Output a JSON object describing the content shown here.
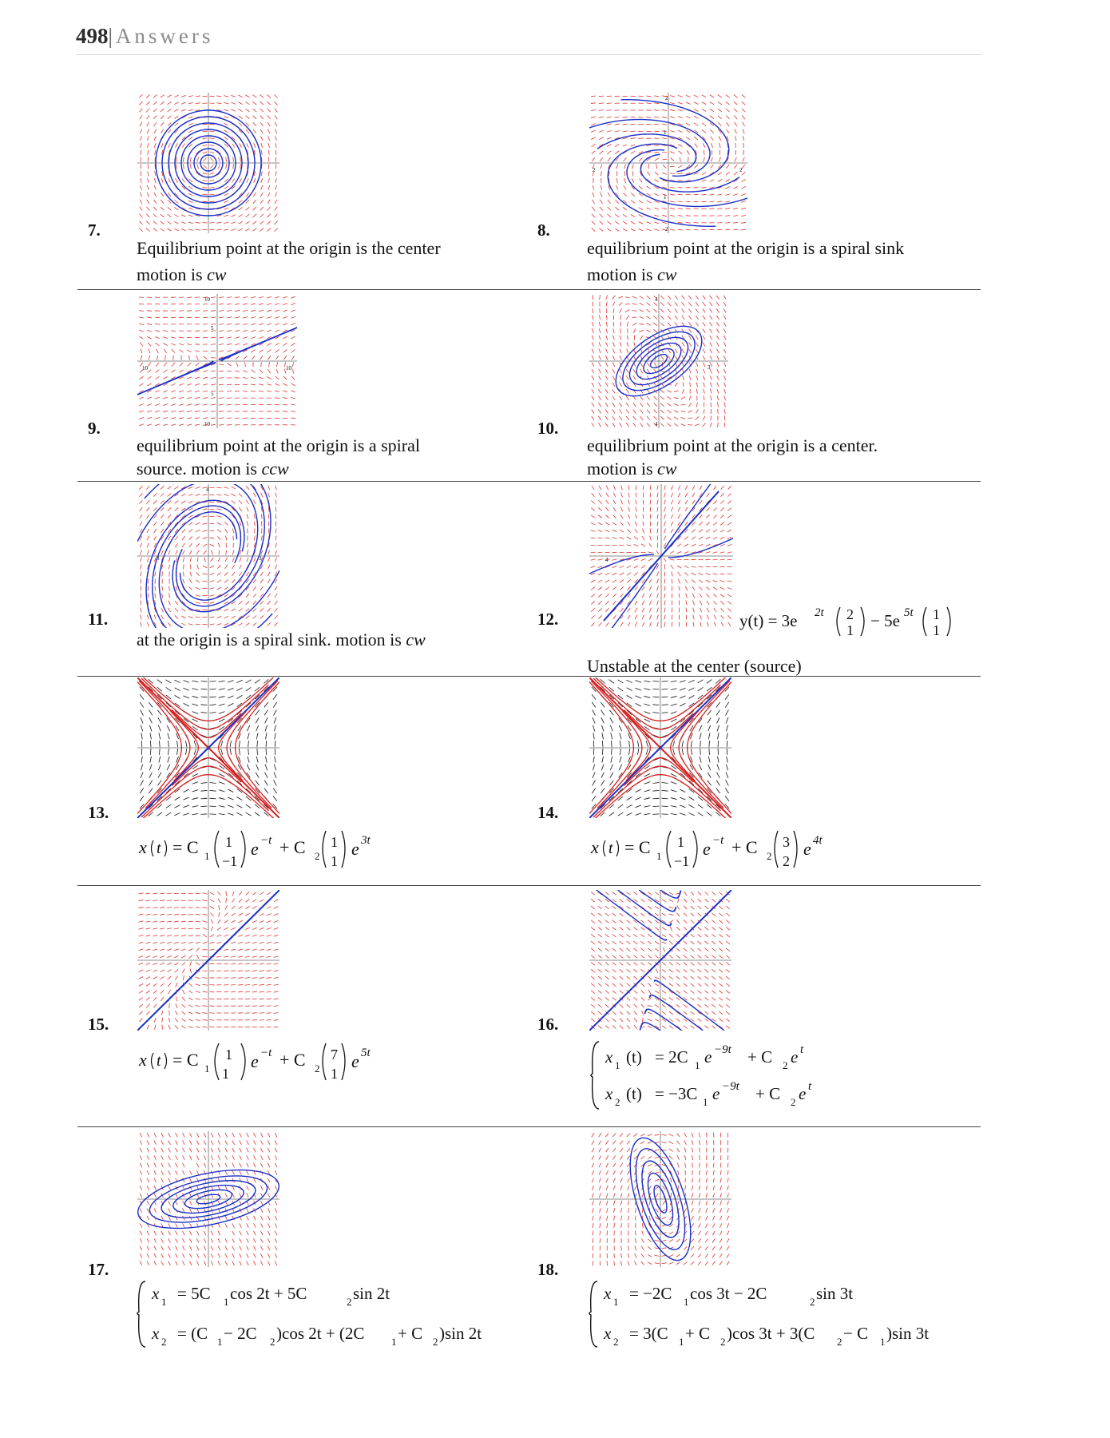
{
  "header": {
    "page_number": "498",
    "separator": "|",
    "title": "Answers"
  },
  "problems": [
    {
      "num": "7.",
      "caption": [
        "Equilibrium point at the origin is the center",
        "motion is"
      ],
      "direction": "cw"
    },
    {
      "num": "8.",
      "caption": [
        "equilibrium point at the origin is a spiral sink",
        "motion is"
      ],
      "direction": "cw"
    },
    {
      "num": "9.",
      "caption": [
        "equilibrium point at the origin is a spiral",
        "source. motion is"
      ],
      "direction": "ccw"
    },
    {
      "num": "10.",
      "caption": [
        "equilibrium point at the origin is a center.",
        "motion is"
      ],
      "direction": "cw"
    },
    {
      "num": "11.",
      "caption": [
        "at the origin is a spiral sink. motion is"
      ],
      "direction": "cw"
    },
    {
      "num": "12.",
      "caption": [
        "Unstable at the center (source)"
      ]
    },
    {
      "num": "13."
    },
    {
      "num": "14."
    },
    {
      "num": "15."
    },
    {
      "num": "16."
    },
    {
      "num": "17."
    },
    {
      "num": "18."
    }
  ],
  "ticks": {
    "p8": {
      "top": "2",
      "y1": "1",
      "left": "2",
      "right": "2",
      "y_1": "1",
      "bottom": "2"
    },
    "p9": {
      "top": "10",
      "y5": "5",
      "left": "10",
      "right": "10",
      "y_5": "5",
      "bottom": "10"
    },
    "p10": {
      "top": "4",
      "right": "3",
      "bottom": "4"
    },
    "p11": {
      "top": "4",
      "left": "3",
      "right": "3"
    },
    "p12": {
      "left": "4"
    }
  },
  "equations": {
    "e12": {
      "lhs": "y(t) = 3e",
      "exp1": "2t",
      "v1": [
        "2",
        "1"
      ],
      "mid": "− 5e",
      "exp2": "5t",
      "v2": [
        "1",
        "1"
      ]
    },
    "e13": {
      "lhs": "x",
      "t": "t",
      "eq": "= C",
      "s1": "1",
      "v1": [
        "1",
        "−1"
      ],
      "e1": "e",
      "exp1": "−t",
      "plus": "+ C",
      "s2": "2",
      "v2": [
        "1",
        "1"
      ],
      "e2": "e",
      "exp2": "3t"
    },
    "e14": {
      "lhs": "x",
      "t": "t",
      "eq": "= C",
      "s1": "1",
      "v1": [
        "1",
        "−1"
      ],
      "e1": "e",
      "exp1": "−t",
      "plus": "+ C",
      "s2": "2",
      "v2": [
        "3",
        "2"
      ],
      "e2": "e",
      "exp2": "4t"
    },
    "e15": {
      "lhs": "x",
      "t": "t",
      "eq": "= C",
      "s1": "1",
      "v1": [
        "1",
        "1"
      ],
      "e1": "e",
      "exp1": "−t",
      "plus": "+ C",
      "s2": "2",
      "v2": [
        "7",
        "1"
      ],
      "e2": "e",
      "exp2": "5t"
    },
    "e16": {
      "l1": {
        "x": "x",
        "sub": "1",
        "t": "(t)",
        "eq": "= 2C",
        "c1": "1",
        "e": "e",
        "exp": "−9t",
        "plus": "+ C",
        "c2": "2",
        "e2": "e",
        "exp2": "t"
      },
      "l2": {
        "x": "x",
        "sub": "2",
        "t": "(t)",
        "eq": "= −3C",
        "c1": "1",
        "e": "e",
        "exp": "−9t",
        "plus": "+ C",
        "c2": "2",
        "e2": "e",
        "exp2": "t"
      }
    },
    "e17": {
      "l1": {
        "x": "x",
        "sub": "1",
        "rest1": "= 5C",
        "c1": "1",
        "rest2": " cos 2t + 5C",
        "c2": "2",
        "rest3": " sin 2t"
      },
      "l2": {
        "x": "x",
        "sub": "2",
        "a": "= (C",
        "a1": "1",
        "b": " − 2C",
        "b2": "2",
        "c": ")cos 2t + (2C",
        "c1": "1",
        "d": " + C",
        "d2": "2",
        "e": ")sin 2t"
      }
    },
    "e18": {
      "l1": {
        "x": "x",
        "sub": "1",
        "rest1": "= −2C",
        "c1": "1",
        "rest2": " cos 3t − 2C",
        "c2": "2",
        "rest3": " sin 3t"
      },
      "l2": {
        "x": "x",
        "sub": "2",
        "a": "= 3(C",
        "a1": "1",
        "b": " + C",
        "b2": "2",
        "c": ")cos 3t + 3(C",
        "c1": "2",
        "d": " − C",
        "d2": "1",
        "e": ")sin 3t"
      }
    }
  },
  "colors": {
    "field": "#e03030",
    "orbit": "#1a2fc8",
    "red_orbit": "#d62020",
    "black_field": "#111111",
    "rule": "#444444"
  }
}
